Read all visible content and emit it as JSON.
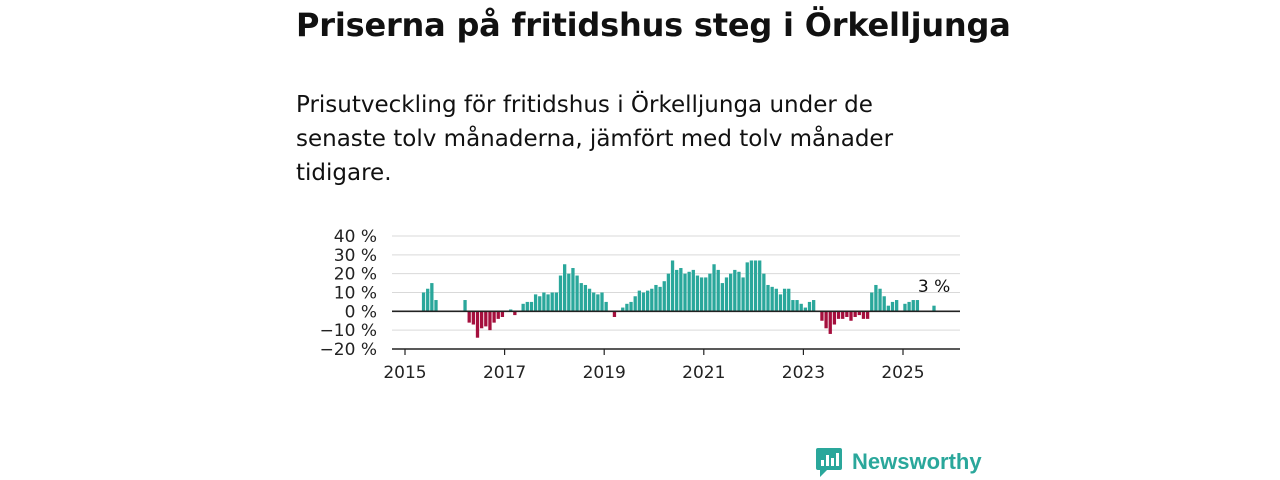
{
  "header": {
    "title": "Priserna på fritidshus steg i Örkelljunga",
    "subtitle": "Prisutveckling för fritidshus i Örkelljunga under de senaste tolv månaderna, jämfört med tolv månader tidigare."
  },
  "brand": {
    "name": "Newsworthy",
    "icon": "newsworthy-logo-icon",
    "color": "#2aa79b"
  },
  "chart_data": {
    "type": "bar",
    "xlabel": "",
    "ylabel": "",
    "ylim": [
      -20,
      40
    ],
    "yticks": [
      {
        "value": 40,
        "label": "40 %"
      },
      {
        "value": 30,
        "label": "30 %"
      },
      {
        "value": 20,
        "label": "20 %"
      },
      {
        "value": 10,
        "label": "10 %"
      },
      {
        "value": 0,
        "label": "0 %"
      },
      {
        "value": -10,
        "label": "−10 %"
      },
      {
        "value": -20,
        "label": "−20 %"
      }
    ],
    "xticks": [
      "2015",
      "2017",
      "2019",
      "2021",
      "2023",
      "2025"
    ],
    "grid": true,
    "colors": {
      "positive": "#2aa79b",
      "negative": "#a50f3d"
    },
    "annotation": {
      "text": "3 %",
      "x": "2025-08"
    },
    "series": [
      {
        "values": [
          {
            "x": "2015-05",
            "y": 10
          },
          {
            "x": "2015-06",
            "y": 12
          },
          {
            "x": "2015-07",
            "y": 15
          },
          {
            "x": "2015-08",
            "y": 6
          },
          {
            "x": "2016-03",
            "y": 6
          },
          {
            "x": "2016-04",
            "y": -6
          },
          {
            "x": "2016-05",
            "y": -7
          },
          {
            "x": "2016-06",
            "y": -14
          },
          {
            "x": "2016-07",
            "y": -9
          },
          {
            "x": "2016-08",
            "y": -8
          },
          {
            "x": "2016-09",
            "y": -10
          },
          {
            "x": "2016-10",
            "y": -6
          },
          {
            "x": "2016-11",
            "y": -4
          },
          {
            "x": "2016-12",
            "y": -3
          },
          {
            "x": "2017-02",
            "y": 1
          },
          {
            "x": "2017-03",
            "y": -2
          },
          {
            "x": "2017-05",
            "y": 4
          },
          {
            "x": "2017-06",
            "y": 5
          },
          {
            "x": "2017-07",
            "y": 5
          },
          {
            "x": "2017-08",
            "y": 9
          },
          {
            "x": "2017-09",
            "y": 8
          },
          {
            "x": "2017-10",
            "y": 10
          },
          {
            "x": "2017-11",
            "y": 9
          },
          {
            "x": "2017-12",
            "y": 10
          },
          {
            "x": "2018-01",
            "y": 10
          },
          {
            "x": "2018-02",
            "y": 19
          },
          {
            "x": "2018-03",
            "y": 25
          },
          {
            "x": "2018-04",
            "y": 20
          },
          {
            "x": "2018-05",
            "y": 23
          },
          {
            "x": "2018-06",
            "y": 19
          },
          {
            "x": "2018-07",
            "y": 15
          },
          {
            "x": "2018-08",
            "y": 14
          },
          {
            "x": "2018-09",
            "y": 12
          },
          {
            "x": "2018-10",
            "y": 10
          },
          {
            "x": "2018-11",
            "y": 9
          },
          {
            "x": "2018-12",
            "y": 10
          },
          {
            "x": "2019-01",
            "y": 5
          },
          {
            "x": "2019-03",
            "y": -3
          },
          {
            "x": "2019-05",
            "y": 2
          },
          {
            "x": "2019-06",
            "y": 4
          },
          {
            "x": "2019-07",
            "y": 5
          },
          {
            "x": "2019-08",
            "y": 8
          },
          {
            "x": "2019-09",
            "y": 11
          },
          {
            "x": "2019-10",
            "y": 10
          },
          {
            "x": "2019-11",
            "y": 11
          },
          {
            "x": "2019-12",
            "y": 12
          },
          {
            "x": "2020-01",
            "y": 14
          },
          {
            "x": "2020-02",
            "y": 13
          },
          {
            "x": "2020-03",
            "y": 16
          },
          {
            "x": "2020-04",
            "y": 20
          },
          {
            "x": "2020-05",
            "y": 27
          },
          {
            "x": "2020-06",
            "y": 22
          },
          {
            "x": "2020-07",
            "y": 23
          },
          {
            "x": "2020-08",
            "y": 20
          },
          {
            "x": "2020-09",
            "y": 21
          },
          {
            "x": "2020-10",
            "y": 22
          },
          {
            "x": "2020-11",
            "y": 19
          },
          {
            "x": "2020-12",
            "y": 18
          },
          {
            "x": "2021-01",
            "y": 18
          },
          {
            "x": "2021-02",
            "y": 20
          },
          {
            "x": "2021-03",
            "y": 25
          },
          {
            "x": "2021-04",
            "y": 22
          },
          {
            "x": "2021-05",
            "y": 15
          },
          {
            "x": "2021-06",
            "y": 18
          },
          {
            "x": "2021-07",
            "y": 20
          },
          {
            "x": "2021-08",
            "y": 22
          },
          {
            "x": "2021-09",
            "y": 21
          },
          {
            "x": "2021-10",
            "y": 18
          },
          {
            "x": "2021-11",
            "y": 26
          },
          {
            "x": "2021-12",
            "y": 27
          },
          {
            "x": "2022-01",
            "y": 27
          },
          {
            "x": "2022-02",
            "y": 27
          },
          {
            "x": "2022-03",
            "y": 20
          },
          {
            "x": "2022-04",
            "y": 14
          },
          {
            "x": "2022-05",
            "y": 13
          },
          {
            "x": "2022-06",
            "y": 12
          },
          {
            "x": "2022-07",
            "y": 9
          },
          {
            "x": "2022-08",
            "y": 12
          },
          {
            "x": "2022-09",
            "y": 12
          },
          {
            "x": "2022-10",
            "y": 6
          },
          {
            "x": "2022-11",
            "y": 6
          },
          {
            "x": "2022-12",
            "y": 4
          },
          {
            "x": "2023-01",
            "y": 2
          },
          {
            "x": "2023-02",
            "y": 5
          },
          {
            "x": "2023-03",
            "y": 6
          },
          {
            "x": "2023-05",
            "y": -5
          },
          {
            "x": "2023-06",
            "y": -9
          },
          {
            "x": "2023-07",
            "y": -12
          },
          {
            "x": "2023-08",
            "y": -7
          },
          {
            "x": "2023-09",
            "y": -4
          },
          {
            "x": "2023-10",
            "y": -4
          },
          {
            "x": "2023-11",
            "y": -3
          },
          {
            "x": "2023-12",
            "y": -5
          },
          {
            "x": "2024-01",
            "y": -3
          },
          {
            "x": "2024-02",
            "y": -2
          },
          {
            "x": "2024-03",
            "y": -4
          },
          {
            "x": "2024-04",
            "y": -4
          },
          {
            "x": "2024-05",
            "y": 10
          },
          {
            "x": "2024-06",
            "y": 14
          },
          {
            "x": "2024-07",
            "y": 12
          },
          {
            "x": "2024-08",
            "y": 8
          },
          {
            "x": "2024-09",
            "y": 3
          },
          {
            "x": "2024-10",
            "y": 5
          },
          {
            "x": "2024-11",
            "y": 6
          },
          {
            "x": "2025-01",
            "y": 4
          },
          {
            "x": "2025-02",
            "y": 5
          },
          {
            "x": "2025-03",
            "y": 6
          },
          {
            "x": "2025-04",
            "y": 6
          },
          {
            "x": "2025-08",
            "y": 3
          }
        ]
      }
    ]
  }
}
